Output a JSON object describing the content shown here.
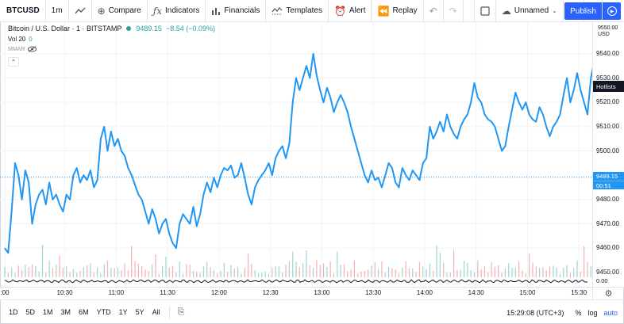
{
  "toolbar": {
    "symbol": "BTCUSD",
    "interval": "1m",
    "compare_label": "Compare",
    "indicators_label": "Indicators",
    "financials_label": "Financials",
    "templates_label": "Templates",
    "alert_label": "Alert",
    "replay_label": "Replay",
    "layout_name": "Unnamed",
    "publish_label": "Publish"
  },
  "legend": {
    "title": "Bitcoin / U.S. Dollar · 1 · BITSTAMP",
    "price": "9489.15",
    "change": "−8.54 (−0.09%)",
    "vol_label": "Vol 20",
    "vol_value": "0",
    "mmar_label": "MMAR"
  },
  "price_axis": {
    "currency_top": "9550.00",
    "currency": "USD",
    "ticks": [
      "9540.00",
      "9530.00",
      "9520.00",
      "9510.00",
      "9500.00",
      "9480.00",
      "9470.00",
      "9460.00",
      "9450.00"
    ],
    "hotlists_label": "Hotlists",
    "current_price": "9489.15",
    "countdown": "00:51",
    "zero_tick": "0.00"
  },
  "time_axis": {
    "ticks": [
      ":00",
      "10:30",
      "11:00",
      "11:30",
      "12:00",
      "12:30",
      "13:00",
      "13:30",
      "14:00",
      "14:30",
      "15:00",
      "15:30"
    ]
  },
  "bottom": {
    "ranges": [
      "1D",
      "5D",
      "1M",
      "3M",
      "6M",
      "YTD",
      "1Y",
      "5Y",
      "All"
    ],
    "clock": "15:29:08 (UTC+3)",
    "percent": "%",
    "log": "log",
    "auto": "auto"
  },
  "colors": {
    "line": "#2196f3",
    "up": "#26a69a",
    "down": "#ef5350",
    "accent": "#2962ff"
  },
  "chart_data": {
    "type": "line",
    "title": "Bitcoin / U.S. Dollar · 1 · BITSTAMP",
    "xlabel": "",
    "ylabel": "USD",
    "ylim": [
      9448,
      9553
    ],
    "x_range_minutes": [
      595,
      935
    ],
    "series": [
      {
        "name": "BTCUSD",
        "points": [
          [
            595,
            9460
          ],
          [
            597,
            9458
          ],
          [
            599,
            9475
          ],
          [
            601,
            9495
          ],
          [
            603,
            9490
          ],
          [
            605,
            9480
          ],
          [
            607,
            9492
          ],
          [
            609,
            9487
          ],
          [
            611,
            9470
          ],
          [
            613,
            9478
          ],
          [
            615,
            9482
          ],
          [
            617,
            9484
          ],
          [
            619,
            9478
          ],
          [
            621,
            9487
          ],
          [
            623,
            9480
          ],
          [
            625,
            9482
          ],
          [
            627,
            9478
          ],
          [
            629,
            9475
          ],
          [
            631,
            9482
          ],
          [
            633,
            9480
          ],
          [
            635,
            9490
          ],
          [
            637,
            9493
          ],
          [
            639,
            9487
          ],
          [
            641,
            9490
          ],
          [
            643,
            9488
          ],
          [
            645,
            9492
          ],
          [
            647,
            9485
          ],
          [
            649,
            9488
          ],
          [
            651,
            9505
          ],
          [
            653,
            9510
          ],
          [
            655,
            9500
          ],
          [
            657,
            9508
          ],
          [
            659,
            9502
          ],
          [
            661,
            9505
          ],
          [
            663,
            9500
          ],
          [
            665,
            9498
          ],
          [
            667,
            9493
          ],
          [
            669,
            9490
          ],
          [
            671,
            9486
          ],
          [
            673,
            9482
          ],
          [
            675,
            9480
          ],
          [
            677,
            9475
          ],
          [
            679,
            9470
          ],
          [
            681,
            9476
          ],
          [
            683,
            9472
          ],
          [
            685,
            9466
          ],
          [
            687,
            9470
          ],
          [
            689,
            9472
          ],
          [
            691,
            9466
          ],
          [
            693,
            9462
          ],
          [
            695,
            9460
          ],
          [
            697,
            9470
          ],
          [
            699,
            9474
          ],
          [
            701,
            9472
          ],
          [
            703,
            9470
          ],
          [
            705,
            9477
          ],
          [
            707,
            9469
          ],
          [
            709,
            9474
          ],
          [
            711,
            9482
          ],
          [
            713,
            9487
          ],
          [
            715,
            9483
          ],
          [
            717,
            9489
          ],
          [
            719,
            9485
          ],
          [
            721,
            9490
          ],
          [
            723,
            9493
          ],
          [
            725,
            9492
          ],
          [
            727,
            9494
          ],
          [
            729,
            9489
          ],
          [
            731,
            9490
          ],
          [
            733,
            9495
          ],
          [
            735,
            9489
          ],
          [
            737,
            9482
          ],
          [
            739,
            9478
          ],
          [
            741,
            9485
          ],
          [
            743,
            9488
          ],
          [
            745,
            9490
          ],
          [
            747,
            9492
          ],
          [
            749,
            9495
          ],
          [
            751,
            9490
          ],
          [
            753,
            9497
          ],
          [
            755,
            9500
          ],
          [
            757,
            9502
          ],
          [
            759,
            9497
          ],
          [
            761,
            9503
          ],
          [
            763,
            9520
          ],
          [
            765,
            9530
          ],
          [
            767,
            9525
          ],
          [
            769,
            9530
          ],
          [
            771,
            9535
          ],
          [
            773,
            9530
          ],
          [
            775,
            9540
          ],
          [
            777,
            9531
          ],
          [
            779,
            9525
          ],
          [
            781,
            9520
          ],
          [
            783,
            9526
          ],
          [
            785,
            9522
          ],
          [
            787,
            9516
          ],
          [
            789,
            9520
          ],
          [
            791,
            9523
          ],
          [
            793,
            9520
          ],
          [
            795,
            9516
          ],
          [
            797,
            9510
          ],
          [
            799,
            9505
          ],
          [
            801,
            9500
          ],
          [
            803,
            9495
          ],
          [
            805,
            9490
          ],
          [
            807,
            9487
          ],
          [
            809,
            9492
          ],
          [
            811,
            9488
          ],
          [
            813,
            9489
          ],
          [
            815,
            9485
          ],
          [
            817,
            9490
          ],
          [
            819,
            9495
          ],
          [
            821,
            9493
          ],
          [
            823,
            9487
          ],
          [
            825,
            9485
          ],
          [
            827,
            9493
          ],
          [
            829,
            9490
          ],
          [
            831,
            9488
          ],
          [
            833,
            9492
          ],
          [
            835,
            9490
          ],
          [
            837,
            9488
          ],
          [
            839,
            9495
          ],
          [
            841,
            9497
          ],
          [
            843,
            9510
          ],
          [
            845,
            9505
          ],
          [
            847,
            9508
          ],
          [
            849,
            9512
          ],
          [
            851,
            9508
          ],
          [
            853,
            9515
          ],
          [
            855,
            9510
          ],
          [
            857,
            9507
          ],
          [
            859,
            9505
          ],
          [
            861,
            9510
          ],
          [
            863,
            9513
          ],
          [
            865,
            9515
          ],
          [
            867,
            9520
          ],
          [
            869,
            9528
          ],
          [
            871,
            9522
          ],
          [
            873,
            9520
          ],
          [
            875,
            9515
          ],
          [
            877,
            9513
          ],
          [
            879,
            9512
          ],
          [
            881,
            9510
          ],
          [
            883,
            9505
          ],
          [
            885,
            9500
          ],
          [
            887,
            9502
          ],
          [
            889,
            9510
          ],
          [
            891,
            9517
          ],
          [
            893,
            9524
          ],
          [
            895,
            9520
          ],
          [
            897,
            9517
          ],
          [
            899,
            9520
          ],
          [
            901,
            9515
          ],
          [
            903,
            9513
          ],
          [
            905,
            9512
          ],
          [
            907,
            9518
          ],
          [
            909,
            9515
          ],
          [
            911,
            9510
          ],
          [
            913,
            9506
          ],
          [
            915,
            9510
          ],
          [
            917,
            9512
          ],
          [
            919,
            9515
          ],
          [
            921,
            9523
          ],
          [
            923,
            9530
          ],
          [
            925,
            9520
          ],
          [
            927,
            9525
          ],
          [
            929,
            9532
          ],
          [
            931,
            9525
          ],
          [
            933,
            9520
          ],
          [
            935,
            9515
          ],
          [
            937,
            9530
          ],
          [
            939,
            9537
          ],
          [
            941,
            9540
          ],
          [
            943,
            9533
          ],
          [
            945,
            9520
          ],
          [
            947,
            9516
          ],
          [
            949,
            9520
          ],
          [
            951,
            9515
          ],
          [
            953,
            9522
          ],
          [
            955,
            9530
          ],
          [
            957,
            9525
          ],
          [
            959,
            9520
          ],
          [
            961,
            9512
          ],
          [
            963,
            9508
          ],
          [
            965,
            9512
          ],
          [
            967,
            9505
          ],
          [
            969,
            9500
          ],
          [
            971,
            9495
          ],
          [
            973,
            9490
          ],
          [
            975,
            9485
          ],
          [
            977,
            9488
          ],
          [
            979,
            9487
          ],
          [
            981,
            9490
          ],
          [
            983,
            9492
          ],
          [
            985,
            9497
          ],
          [
            987,
            9503
          ],
          [
            989,
            9500
          ],
          [
            991,
            9505
          ],
          [
            993,
            9500
          ],
          [
            995,
            9503
          ],
          [
            997,
            9507
          ],
          [
            999,
            9502
          ],
          [
            1001,
            9500
          ],
          [
            1003,
            9505
          ],
          [
            1005,
            9510
          ],
          [
            1007,
            9516
          ],
          [
            1009,
            9510
          ],
          [
            1011,
            9508
          ],
          [
            1013,
            9504
          ],
          [
            1015,
            9510
          ],
          [
            1017,
            9512
          ],
          [
            1019,
            9515
          ],
          [
            1021,
            9509
          ],
          [
            1023,
            9505
          ],
          [
            1025,
            9502
          ],
          [
            1027,
            9506
          ],
          [
            1029,
            9510
          ],
          [
            1031,
            9506
          ],
          [
            1033,
            9505
          ],
          [
            1035,
            9500
          ],
          [
            1037,
            9495
          ],
          [
            1039,
            9490
          ],
          [
            1041,
            9491
          ],
          [
            1043,
            9489
          ]
        ]
      }
    ]
  }
}
